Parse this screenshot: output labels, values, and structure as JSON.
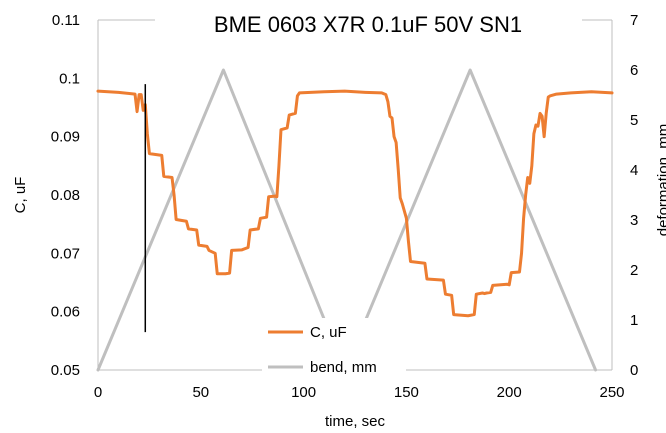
{
  "chart_data": {
    "type": "line",
    "title": "BME 0603 X7R 0.1uF 50V SN1",
    "xlabel": "time, sec",
    "ylabel": "C, uF",
    "y2label": "deformation, mm",
    "xlim": [
      0,
      250
    ],
    "ylim": [
      0.05,
      0.11
    ],
    "y2lim": [
      0,
      7
    ],
    "x_ticks": [
      "0",
      "50",
      "100",
      "150",
      "200",
      "250"
    ],
    "y_ticks": [
      "0.05",
      "0.06",
      "0.07",
      "0.08",
      "0.09",
      "0.1",
      "0.11"
    ],
    "y2_ticks": [
      "0",
      "1",
      "2",
      "3",
      "4",
      "5",
      "6",
      "7"
    ],
    "legend_position": "bottom-center",
    "grid": false,
    "series": [
      {
        "name": "C, uF",
        "axis": "left",
        "color": "#ED7D31",
        "points": [
          [
            0,
            0.0978
          ],
          [
            10,
            0.0976
          ],
          [
            18,
            0.0973
          ],
          [
            19,
            0.0943
          ],
          [
            20,
            0.0972
          ],
          [
            21,
            0.0972
          ],
          [
            22,
            0.0945
          ],
          [
            23,
            0.0955
          ],
          [
            24,
            0.0905
          ],
          [
            25,
            0.0871
          ],
          [
            31,
            0.0868
          ],
          [
            32,
            0.0832
          ],
          [
            36,
            0.083
          ],
          [
            37,
            0.08
          ],
          [
            38,
            0.0758
          ],
          [
            43,
            0.0755
          ],
          [
            44,
            0.0742
          ],
          [
            48,
            0.074
          ],
          [
            49,
            0.0714
          ],
          [
            53,
            0.0712
          ],
          [
            54,
            0.0705
          ],
          [
            57,
            0.07
          ],
          [
            58,
            0.0665
          ],
          [
            62,
            0.0665
          ],
          [
            64,
            0.0666
          ],
          [
            65,
            0.0705
          ],
          [
            70,
            0.0706
          ],
          [
            73,
            0.071
          ],
          [
            74,
            0.074
          ],
          [
            78,
            0.0742
          ],
          [
            79,
            0.076
          ],
          [
            82,
            0.0762
          ],
          [
            83,
            0.0797
          ],
          [
            86,
            0.0798
          ],
          [
            87,
            0.0797
          ],
          [
            88,
            0.085
          ],
          [
            89,
            0.0912
          ],
          [
            92,
            0.0915
          ],
          [
            93,
            0.0937
          ],
          [
            96,
            0.094
          ],
          [
            97,
            0.097
          ],
          [
            98,
            0.0975
          ],
          [
            110,
            0.0977
          ],
          [
            120,
            0.0978
          ],
          [
            130,
            0.0976
          ],
          [
            138,
            0.0975
          ],
          [
            140,
            0.0972
          ],
          [
            141,
            0.096
          ],
          [
            142,
            0.0935
          ],
          [
            143,
            0.0932
          ],
          [
            144,
            0.09
          ],
          [
            145,
            0.089
          ],
          [
            146,
            0.0845
          ],
          [
            147,
            0.0795
          ],
          [
            148,
            0.0785
          ],
          [
            150,
            0.076
          ],
          [
            151,
            0.072
          ],
          [
            152,
            0.0686
          ],
          [
            159,
            0.0683
          ],
          [
            160,
            0.0656
          ],
          [
            168,
            0.0654
          ],
          [
            169,
            0.063
          ],
          [
            172,
            0.0628
          ],
          [
            173,
            0.0595
          ],
          [
            180,
            0.0593
          ],
          [
            183,
            0.0595
          ],
          [
            184,
            0.063
          ],
          [
            187,
            0.0632
          ],
          [
            188,
            0.0631
          ],
          [
            189,
            0.0632
          ],
          [
            191,
            0.0633
          ],
          [
            192,
            0.0645
          ],
          [
            199,
            0.0647
          ],
          [
            200,
            0.0646
          ],
          [
            201,
            0.0667
          ],
          [
            205,
            0.0668
          ],
          [
            206,
            0.07
          ],
          [
            207,
            0.076
          ],
          [
            208,
            0.08
          ],
          [
            209,
            0.083
          ],
          [
            210,
            0.082
          ],
          [
            211,
            0.085
          ],
          [
            212,
            0.0905
          ],
          [
            213,
            0.092
          ],
          [
            214,
            0.0918
          ],
          [
            215,
            0.094
          ],
          [
            216,
            0.0935
          ],
          [
            217,
            0.09
          ],
          [
            218,
            0.094
          ],
          [
            219,
            0.0968
          ],
          [
            220,
            0.097
          ],
          [
            223,
            0.0973
          ],
          [
            230,
            0.0975
          ],
          [
            240,
            0.0977
          ],
          [
            250,
            0.0975
          ]
        ]
      },
      {
        "name": "bend, mm",
        "axis": "right",
        "color": "#BFBFBF",
        "points": [
          [
            0,
            0
          ],
          [
            61,
            6
          ],
          [
            120,
            0
          ],
          [
            181,
            6
          ],
          [
            242,
            0
          ]
        ]
      }
    ],
    "annotations": [
      {
        "type": "vertical_line",
        "x": 23,
        "y_from": 0.0565,
        "y_to": 0.099,
        "color": "#000000"
      }
    ]
  }
}
